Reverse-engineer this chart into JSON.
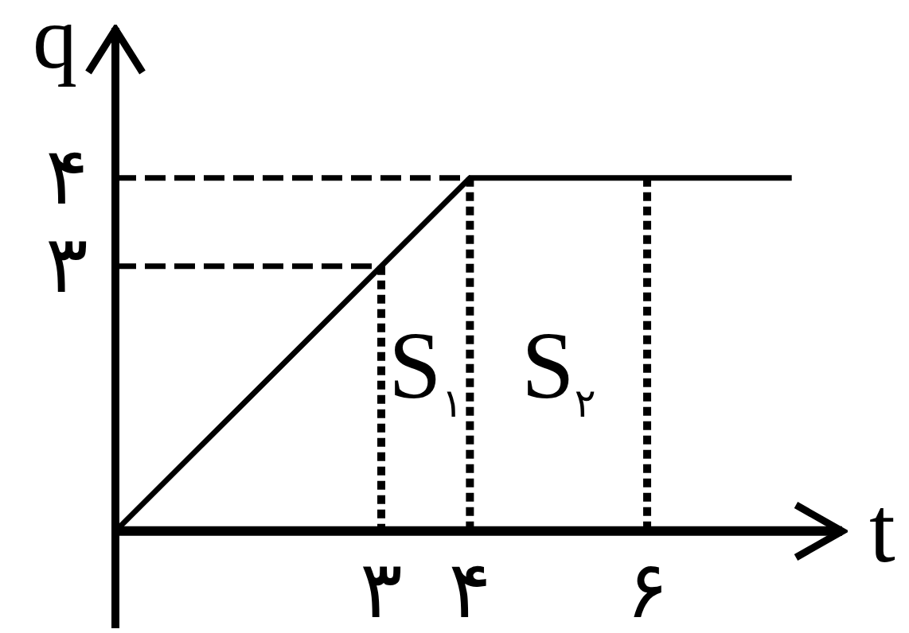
{
  "chart_data": {
    "type": "line",
    "xlabel": "t",
    "ylabel": "q",
    "xlim": [
      0,
      8.2
    ],
    "ylim": [
      -1.1,
      5.7
    ],
    "xticks": [
      {
        "value": 3,
        "label": "۳"
      },
      {
        "value": 4,
        "label": "۴"
      },
      {
        "value": 6,
        "label": "۶"
      }
    ],
    "yticks": [
      {
        "value": 3,
        "label": "۳"
      },
      {
        "value": 4,
        "label": "۴"
      }
    ],
    "grid": false,
    "legend": false,
    "marker": "none",
    "series": [
      {
        "color": "#000000",
        "x": [
          0,
          4,
          7.6
        ],
        "values": [
          0,
          4,
          4
        ],
        "line_style": "solid"
      },
      {
        "color": "#000000",
        "x": [
          0,
          4
        ],
        "values": [
          4,
          4
        ],
        "line_style": "dashed"
      },
      {
        "color": "#000000",
        "x": [
          0,
          3
        ],
        "values": [
          3,
          3
        ],
        "line_style": "dashed"
      },
      {
        "color": "#000000",
        "x": [
          3,
          3
        ],
        "values": [
          3,
          0
        ],
        "line_style": "dotted"
      },
      {
        "color": "#000000",
        "x": [
          4,
          4
        ],
        "values": [
          4,
          0
        ],
        "line_style": "dotted"
      },
      {
        "color": "#000000",
        "x": [
          6,
          6
        ],
        "values": [
          4,
          0
        ],
        "line_style": "dotted"
      }
    ],
    "annotations": [
      "S$_{۱}$",
      "S$_{۲}$"
    ]
  }
}
